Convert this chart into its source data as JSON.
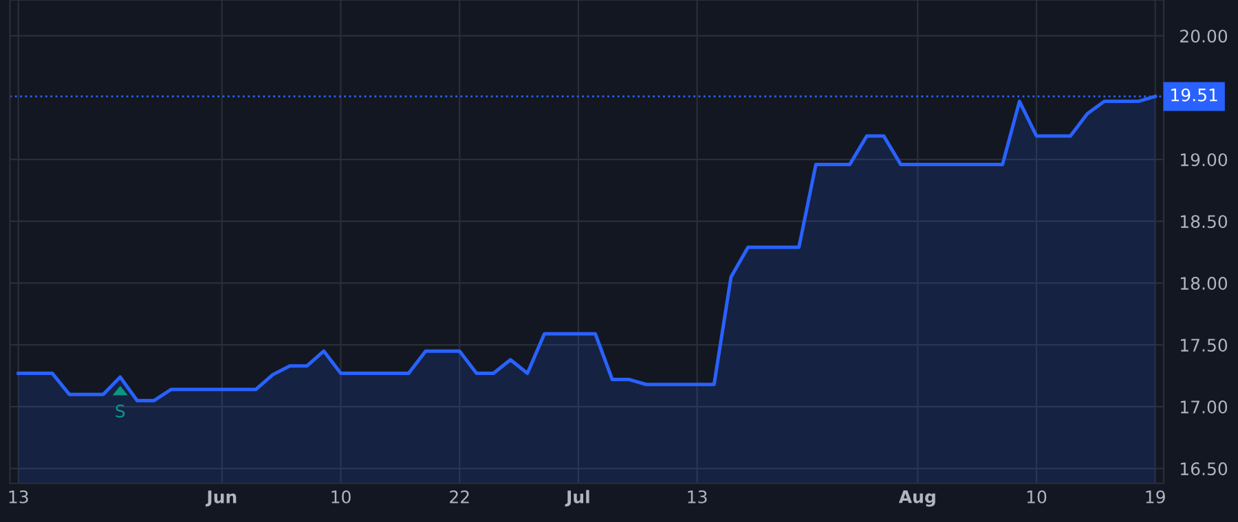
{
  "chart_data": {
    "type": "area",
    "categories": [
      "13",
      null,
      null,
      null,
      null,
      null,
      null,
      null,
      null,
      null,
      null,
      null,
      "Jun",
      null,
      null,
      null,
      null,
      null,
      null,
      "10",
      null,
      null,
      null,
      null,
      null,
      null,
      "22",
      null,
      null,
      null,
      null,
      null,
      null,
      "Jul",
      null,
      null,
      null,
      null,
      null,
      null,
      "13",
      null,
      null,
      null,
      null,
      null,
      null,
      null,
      null,
      null,
      null,
      null,
      null,
      "Aug",
      null,
      null,
      null,
      null,
      null,
      null,
      "10",
      null,
      null,
      null,
      null,
      null,
      null,
      "19"
    ],
    "series": [
      {
        "color": "#2962ff",
        "values": [
          17.27,
          17.27,
          17.27,
          17.1,
          17.1,
          17.1,
          17.24,
          17.05,
          17.05,
          17.14,
          17.14,
          17.14,
          17.14,
          17.14,
          17.14,
          17.26,
          17.33,
          17.33,
          17.45,
          17.27,
          17.27,
          17.27,
          17.27,
          17.27,
          17.45,
          17.45,
          17.45,
          17.27,
          17.27,
          17.38,
          17.27,
          17.59,
          17.59,
          17.59,
          17.59,
          17.22,
          17.22,
          17.18,
          17.18,
          17.18,
          17.18,
          17.18,
          18.05,
          18.29,
          18.29,
          18.29,
          18.29,
          18.96,
          18.96,
          18.96,
          19.19,
          19.19,
          18.96,
          18.96,
          18.96,
          18.96,
          18.96,
          18.96,
          18.96,
          19.47,
          19.19,
          19.19,
          19.19,
          19.37,
          19.47,
          19.47,
          19.47,
          19.51
        ]
      }
    ],
    "ylim": [
      16.38,
      20.29
    ],
    "yticks": [
      {
        "value": 16.5,
        "label": "16.50"
      },
      {
        "value": 17.0,
        "label": "17.00"
      },
      {
        "value": 17.5,
        "label": "17.50"
      },
      {
        "value": 18.0,
        "label": "18.00"
      },
      {
        "value": 18.5,
        "label": "18.50"
      },
      {
        "value": 19.0,
        "label": "19.00"
      },
      {
        "value": 20.0,
        "label": "20.00"
      }
    ],
    "ref_lines": [
      {
        "axis": "y",
        "value": 19.51,
        "label": "19.51",
        "color": "#2962ff",
        "line_style": "dotted"
      }
    ],
    "annotations": [
      {
        "text": "S",
        "y": 17.24
      }
    ],
    "grid": true
  }
}
